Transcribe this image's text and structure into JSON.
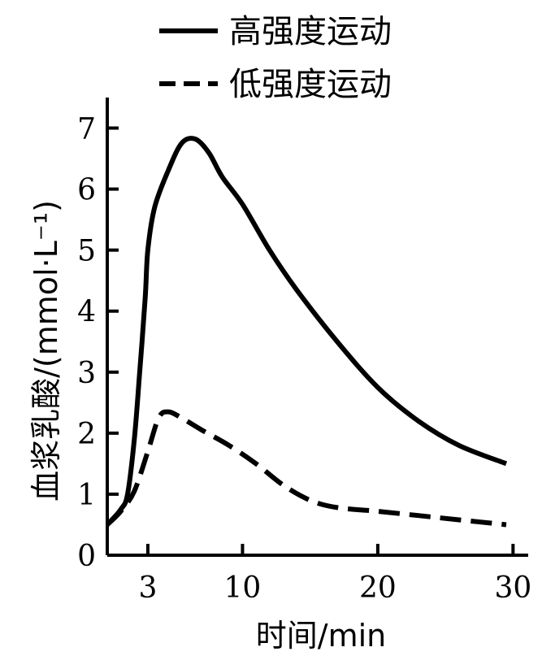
{
  "chart_data": {
    "type": "line",
    "title": "",
    "xlabel": "时间/min",
    "ylabel": "血浆乳酸/(mmol·L⁻¹)",
    "x_ticks": [
      3,
      10,
      20,
      30
    ],
    "y_ticks": [
      0,
      1,
      2,
      3,
      4,
      5,
      6,
      7
    ],
    "xlim": [
      0,
      31
    ],
    "ylim": [
      0,
      7.5
    ],
    "grid": false,
    "legend_position": "top",
    "series": [
      {
        "name": "高强度运动",
        "style": "solid",
        "color": "#000000",
        "x": [
          0,
          1,
          1.5,
          2,
          2.4,
          2.8,
          3.0,
          3.5,
          4.5,
          5.5,
          6.5,
          7.5,
          8.5,
          10,
          12,
          14,
          17,
          20,
          23,
          26,
          29.5
        ],
        "y": [
          0.5,
          0.75,
          1.0,
          1.9,
          3.0,
          4.2,
          5.0,
          5.7,
          6.3,
          6.75,
          6.82,
          6.6,
          6.2,
          5.75,
          5.0,
          4.35,
          3.5,
          2.75,
          2.2,
          1.8,
          1.5
        ]
      },
      {
        "name": "低强度运动",
        "style": "dashed",
        "color": "#000000",
        "x": [
          0,
          1,
          2,
          3,
          3.8,
          4.5,
          5.5,
          7,
          9,
          11,
          13,
          15,
          17,
          20,
          23,
          26,
          29.5
        ],
        "y": [
          0.5,
          0.72,
          1.05,
          1.7,
          2.25,
          2.35,
          2.25,
          2.05,
          1.8,
          1.5,
          1.15,
          0.9,
          0.78,
          0.72,
          0.65,
          0.58,
          0.5
        ]
      }
    ]
  }
}
